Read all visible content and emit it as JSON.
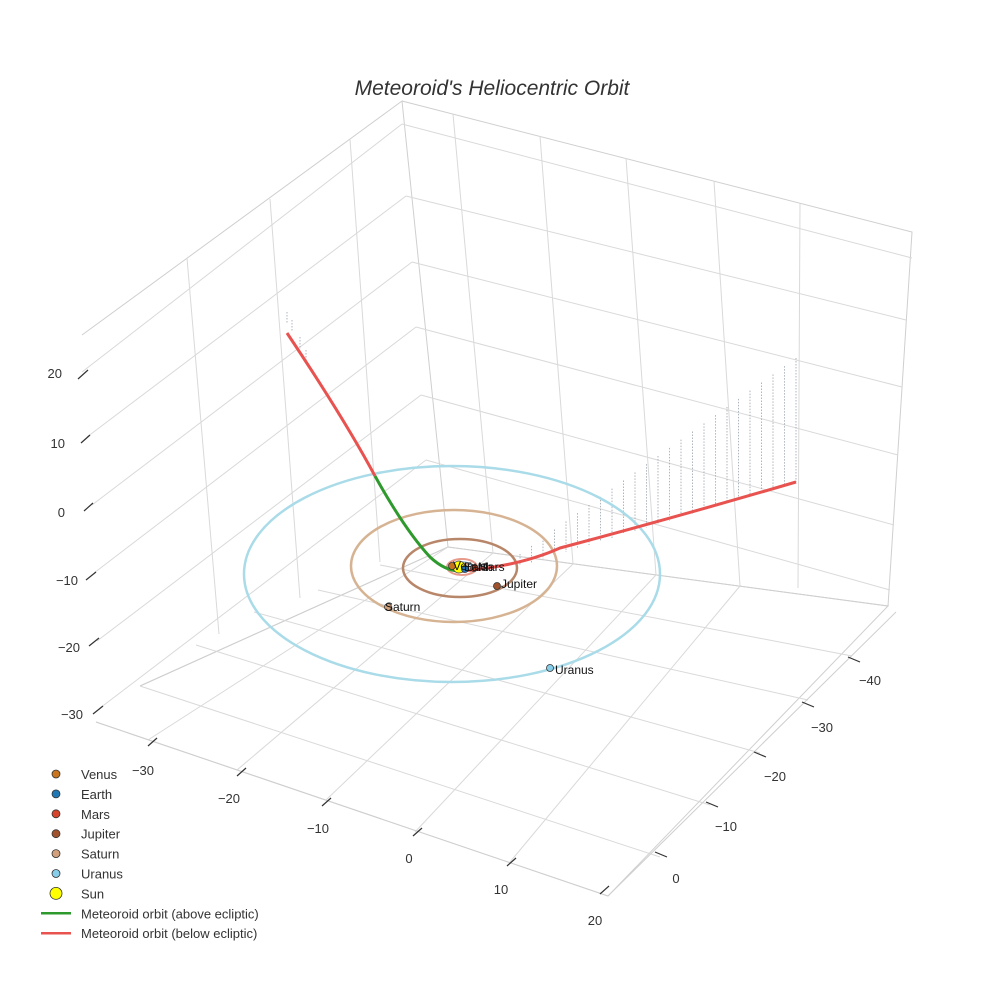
{
  "chart_data": {
    "type": "scatter3d",
    "title": "Meteoroid's Heliocentric Orbit",
    "axes": {
      "x": {
        "ticks": [
          -30,
          -20,
          -10,
          0,
          10,
          20
        ],
        "tick_labels": [
          "−30",
          "−20",
          "−10",
          "0",
          "10",
          "20"
        ]
      },
      "y": {
        "ticks": [
          -40,
          -30,
          -20,
          -10,
          0
        ],
        "tick_labels": [
          "−40",
          "−30",
          "−20",
          "−10",
          "0"
        ]
      },
      "z": {
        "ticks": [
          20,
          10,
          0,
          -10,
          -20,
          -30
        ],
        "tick_labels": [
          "20",
          "10",
          "0",
          "−10",
          "−20",
          "−30"
        ]
      }
    },
    "planets": [
      {
        "name": "Venus",
        "color": "#c8751e",
        "orbit_color": "#e2b27a",
        "label_shown": true
      },
      {
        "name": "Earth",
        "color": "#1f77b4",
        "orbit_color": "#7fb3da",
        "label_shown": true
      },
      {
        "name": "Mars",
        "color": "#d6452b",
        "orbit_color": "#e79a8a",
        "label_shown": true
      },
      {
        "name": "Jupiter",
        "color": "#a0522d",
        "orbit_color": "#b8876a",
        "label_shown": true
      },
      {
        "name": "Saturn",
        "color": "#d2a07a",
        "orbit_color": "#d6b392",
        "label_shown": true
      },
      {
        "name": "Uranus",
        "color": "#87ceeb",
        "orbit_color": "#a9dbe8",
        "label_shown": true
      }
    ],
    "sun": {
      "name": "Sun",
      "color": "#ffff00"
    },
    "meteoroid": {
      "above": {
        "name": "Meteoroid orbit (above ecliptic)",
        "color": "#2e9a2e"
      },
      "below": {
        "name": "Meteoroid orbit (below ecliptic)",
        "color": "#e8524f"
      }
    },
    "legend": {
      "position": "bottom-left",
      "items": [
        {
          "label": "Venus",
          "marker": "dot",
          "color": "#c8751e"
        },
        {
          "label": "Earth",
          "marker": "dot",
          "color": "#1f77b4"
        },
        {
          "label": "Mars",
          "marker": "dot",
          "color": "#d6452b"
        },
        {
          "label": "Jupiter",
          "marker": "dot",
          "color": "#a0522d"
        },
        {
          "label": "Saturn",
          "marker": "dot",
          "color": "#d2a07a"
        },
        {
          "label": "Uranus",
          "marker": "dot",
          "color": "#87ceeb"
        },
        {
          "label": "Sun",
          "marker": "bigdot",
          "color": "#ffff00"
        },
        {
          "label": "Meteoroid orbit (above ecliptic)",
          "marker": "line",
          "color": "#2e9a2e"
        },
        {
          "label": "Meteoroid orbit (below ecliptic)",
          "marker": "line",
          "color": "#e8524f"
        }
      ]
    }
  }
}
